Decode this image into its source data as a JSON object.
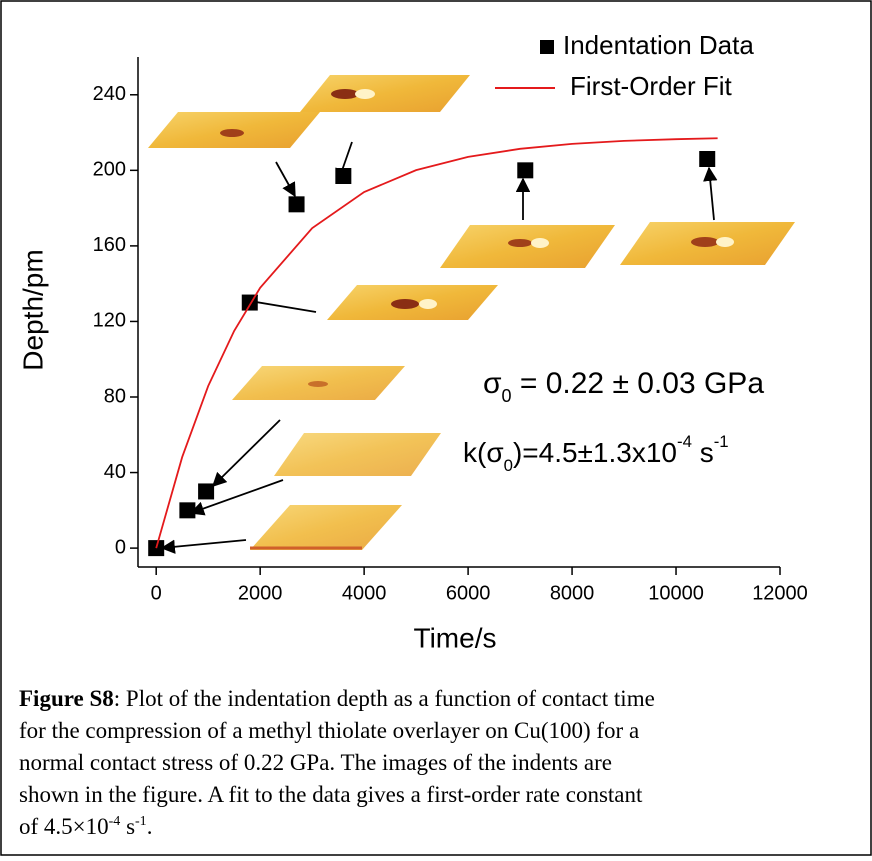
{
  "chart_data": {
    "type": "scatter",
    "xlabel": "Time/s",
    "ylabel": "Depth/pm",
    "xlim": [
      -350,
      12000
    ],
    "ylim": [
      -10,
      260
    ],
    "xticks": [
      0,
      2000,
      4000,
      6000,
      8000,
      10000,
      12000
    ],
    "yticks": [
      0,
      40,
      80,
      120,
      160,
      200,
      240
    ],
    "series": [
      {
        "name": "Indentation Data",
        "type": "scatter",
        "color": "#000000",
        "x": [
          0,
          600,
          960,
          1800,
          2700,
          3600,
          7100,
          10600
        ],
        "values": [
          0,
          20,
          30,
          130,
          182,
          197,
          200,
          206
        ]
      },
      {
        "name": "First-Order Fit",
        "type": "line",
        "color": "#e41a1c",
        "x": [
          0,
          500,
          1000,
          1500,
          2000,
          3000,
          4000,
          5000,
          6000,
          7000,
          8000,
          9000,
          10000,
          10800
        ],
        "values": [
          0,
          48.2,
          85.8,
          115.0,
          137.8,
          169.4,
          188.5,
          200.1,
          207.1,
          211.4,
          214.0,
          215.6,
          216.5,
          217.0
        ]
      }
    ],
    "annotations": [
      {
        "parts": [
          "σ",
          "0",
          " = 0.22 ± 0.03 GPa"
        ]
      },
      {
        "parts": [
          "k(σ",
          "0",
          ")=4.5±1.3x10",
          "-4",
          " s",
          "-1"
        ]
      }
    ]
  },
  "caption": {
    "label": "Figure S8",
    "lines": [
      ": Plot of the indentation depth as a function of contact time",
      "for the compression of a methyl thiolate overlayer on Cu(100) for a",
      "normal contact stress of 0.22 GPa. The images of the indents are",
      "shown  in the figure. A fit to the data gives a first-order rate constant"
    ],
    "last": [
      "of 4.5×10",
      "-4",
      " s",
      "-1",
      "."
    ]
  }
}
